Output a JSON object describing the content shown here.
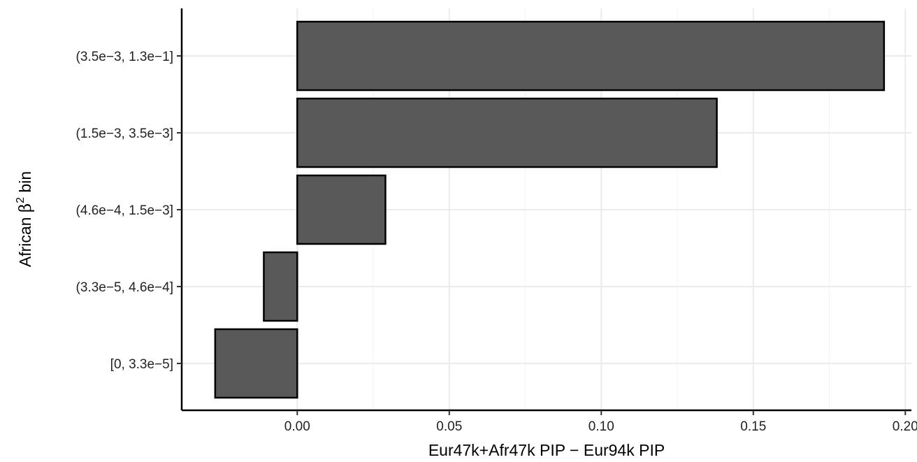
{
  "chart_data": {
    "type": "bar",
    "orientation": "horizontal",
    "categories": [
      "[0, 3.3e−5]",
      "(3.3e−5, 4.6e−4]",
      "(4.6e−4, 1.5e−3]",
      "(1.5e−3, 3.5e−3]",
      "(3.5e−3, 1.3e−1]"
    ],
    "values": [
      -0.027,
      -0.011,
      0.029,
      0.138,
      0.193
    ],
    "xlabel": "Eur47k+Afr47k PIP − Eur94k PIP",
    "ylabel": {
      "prefix": "African ",
      "symbol": "β",
      "superscript": "2",
      "suffix": " bin"
    },
    "xlim": [
      -0.038,
      0.202
    ],
    "xticks": [
      0.0,
      0.05,
      0.1,
      0.15,
      0.2
    ],
    "xtick_labels": [
      "0.00",
      "0.05",
      "0.10",
      "0.15",
      "0.20"
    ],
    "grid": true,
    "legend": "none",
    "colors": {
      "bar_fill": "#595959",
      "bar_stroke": "#000000",
      "grid_major": "#ebebeb",
      "grid_minor": "#f4f4f4",
      "axis_line": "#000000"
    }
  }
}
